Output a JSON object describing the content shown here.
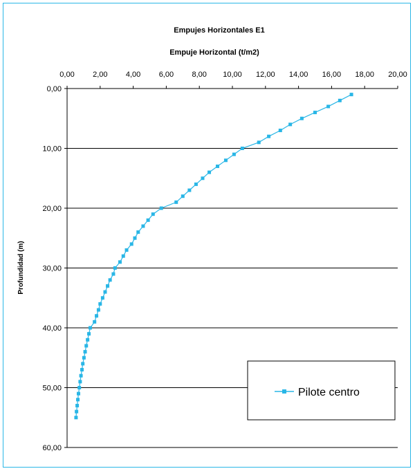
{
  "chart_data": {
    "type": "line",
    "title": "Empujes Horizontales E1",
    "xlabel": "Empuje Horizontal (t/m2)",
    "ylabel": "Profundidad (m)",
    "x_axis_position": "top",
    "y_axis_inverted": true,
    "xlim": [
      0,
      20
    ],
    "ylim": [
      0,
      60
    ],
    "x_ticks": [
      "0,00",
      "2,00",
      "4,00",
      "6,00",
      "8,00",
      "10,00",
      "12,00",
      "14,00",
      "16,00",
      "18,00",
      "20,00"
    ],
    "y_ticks": [
      "0,00",
      "10,00",
      "20,00",
      "30,00",
      "40,00",
      "50,00",
      "60,00"
    ],
    "grid": "horizontal",
    "legend_position": "bottom-right",
    "series": [
      {
        "name": "Pilote centro",
        "color": "#29b6e6",
        "marker": "square",
        "points": [
          [
            17.2,
            1
          ],
          [
            16.5,
            2
          ],
          [
            15.8,
            3
          ],
          [
            15.0,
            4
          ],
          [
            14.2,
            5
          ],
          [
            13.5,
            6
          ],
          [
            12.9,
            7
          ],
          [
            12.2,
            8
          ],
          [
            11.6,
            9
          ],
          [
            10.6,
            10
          ],
          [
            10.1,
            11
          ],
          [
            9.6,
            12
          ],
          [
            9.1,
            13
          ],
          [
            8.6,
            14
          ],
          [
            8.2,
            15
          ],
          [
            7.8,
            16
          ],
          [
            7.4,
            17
          ],
          [
            7.0,
            18
          ],
          [
            6.6,
            19
          ],
          [
            5.7,
            20
          ],
          [
            5.2,
            21
          ],
          [
            4.9,
            22
          ],
          [
            4.6,
            23
          ],
          [
            4.3,
            24
          ],
          [
            4.1,
            25
          ],
          [
            3.9,
            26
          ],
          [
            3.6,
            27
          ],
          [
            3.4,
            28
          ],
          [
            3.2,
            29
          ],
          [
            2.9,
            30
          ],
          [
            2.8,
            31
          ],
          [
            2.6,
            32
          ],
          [
            2.45,
            33
          ],
          [
            2.3,
            34
          ],
          [
            2.15,
            35
          ],
          [
            2.0,
            36
          ],
          [
            1.9,
            37
          ],
          [
            1.78,
            38
          ],
          [
            1.66,
            39
          ],
          [
            1.4,
            40
          ],
          [
            1.32,
            41
          ],
          [
            1.24,
            42
          ],
          [
            1.16,
            43
          ],
          [
            1.09,
            44
          ],
          [
            1.02,
            45
          ],
          [
            0.95,
            46
          ],
          [
            0.9,
            47
          ],
          [
            0.84,
            48
          ],
          [
            0.79,
            49
          ],
          [
            0.74,
            50
          ],
          [
            0.69,
            51
          ],
          [
            0.65,
            52
          ],
          [
            0.61,
            53
          ],
          [
            0.57,
            54
          ],
          [
            0.54,
            55
          ]
        ]
      }
    ]
  }
}
